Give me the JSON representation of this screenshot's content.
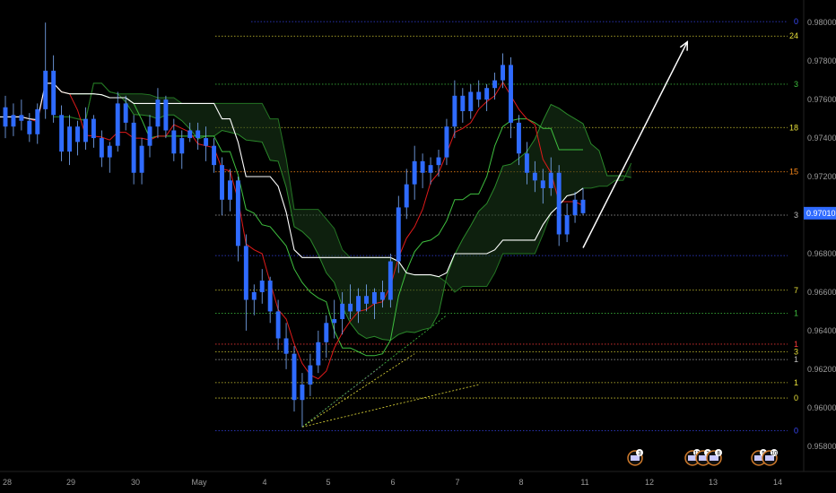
{
  "chart_data": {
    "type": "candlestick",
    "ylim": [
      0.9565,
      0.9808
    ],
    "y_ticks": [
      0.98,
      0.978,
      0.976,
      0.974,
      0.972,
      0.97,
      0.968,
      0.966,
      0.964,
      0.962,
      0.96,
      0.958
    ],
    "y_tick_labels": [
      "0.98000",
      "0.97800",
      "0.97600",
      "0.97400",
      "0.97200",
      "0.97000",
      "0.96800",
      "0.96600",
      "0.96400",
      "0.96200",
      "0.96000",
      "0.95800"
    ],
    "x_tick_labels": [
      "28",
      "29",
      "30",
      "May",
      "4",
      "5",
      "6",
      "7",
      "8",
      "11",
      "12",
      "13",
      "14"
    ],
    "current_price": 0.9701,
    "current_price_label": "0.97010",
    "candles": [
      [
        0.9756,
        0.9762,
        0.974,
        0.9746
      ],
      [
        0.9746,
        0.9758,
        0.9741,
        0.9752
      ],
      [
        0.9752,
        0.976,
        0.9744,
        0.9749
      ],
      [
        0.9749,
        0.9753,
        0.9738,
        0.9742
      ],
      [
        0.9742,
        0.9758,
        0.9737,
        0.9755
      ],
      [
        0.9755,
        0.98,
        0.975,
        0.9775
      ],
      [
        0.9775,
        0.9783,
        0.9748,
        0.9752
      ],
      [
        0.9752,
        0.9757,
        0.9728,
        0.9733
      ],
      [
        0.9733,
        0.9752,
        0.9726,
        0.9746
      ],
      [
        0.9746,
        0.9749,
        0.9731,
        0.9738
      ],
      [
        0.9738,
        0.9756,
        0.9734,
        0.975
      ],
      [
        0.975,
        0.9752,
        0.9735,
        0.974
      ],
      [
        0.974,
        0.9744,
        0.9725,
        0.973
      ],
      [
        0.973,
        0.9738,
        0.9722,
        0.9736
      ],
      [
        0.9736,
        0.9764,
        0.9733,
        0.9758
      ],
      [
        0.9758,
        0.9762,
        0.9744,
        0.9748
      ],
      [
        0.9748,
        0.9752,
        0.9716,
        0.9722
      ],
      [
        0.9722,
        0.974,
        0.9716,
        0.9736
      ],
      [
        0.9736,
        0.9752,
        0.973,
        0.9746
      ],
      [
        0.9746,
        0.9766,
        0.974,
        0.976
      ],
      [
        0.976,
        0.9762,
        0.974,
        0.9744
      ],
      [
        0.9744,
        0.975,
        0.9728,
        0.9732
      ],
      [
        0.9732,
        0.9744,
        0.9724,
        0.974
      ],
      [
        0.974,
        0.9748,
        0.9738,
        0.9744
      ],
      [
        0.9744,
        0.9748,
        0.9734,
        0.974
      ],
      [
        0.974,
        0.9746,
        0.9728,
        0.9736
      ],
      [
        0.9736,
        0.974,
        0.9722,
        0.9726
      ],
      [
        0.9726,
        0.973,
        0.97,
        0.9708
      ],
      [
        0.9708,
        0.9724,
        0.9702,
        0.9718
      ],
      [
        0.9718,
        0.972,
        0.9676,
        0.9684
      ],
      [
        0.9684,
        0.969,
        0.964,
        0.9656
      ],
      [
        0.9656,
        0.9664,
        0.9648,
        0.966
      ],
      [
        0.966,
        0.9672,
        0.9654,
        0.9666
      ],
      [
        0.9666,
        0.9668,
        0.9644,
        0.965
      ],
      [
        0.965,
        0.9656,
        0.963,
        0.9636
      ],
      [
        0.9636,
        0.9644,
        0.962,
        0.9628
      ],
      [
        0.9628,
        0.9632,
        0.9598,
        0.9604
      ],
      [
        0.9604,
        0.9618,
        0.959,
        0.9612
      ],
      [
        0.9612,
        0.9628,
        0.9606,
        0.9622
      ],
      [
        0.9622,
        0.964,
        0.9618,
        0.9634
      ],
      [
        0.9634,
        0.9648,
        0.9626,
        0.9644
      ],
      [
        0.9644,
        0.9656,
        0.9636,
        0.9646
      ],
      [
        0.9646,
        0.966,
        0.9638,
        0.9654
      ],
      [
        0.9654,
        0.9664,
        0.9646,
        0.965
      ],
      [
        0.965,
        0.9662,
        0.9644,
        0.9658
      ],
      [
        0.9658,
        0.9664,
        0.965,
        0.9654
      ],
      [
        0.9654,
        0.9662,
        0.9646,
        0.966
      ],
      [
        0.966,
        0.9666,
        0.9652,
        0.9656
      ],
      [
        0.9656,
        0.968,
        0.9652,
        0.9676
      ],
      [
        0.9676,
        0.971,
        0.967,
        0.9704
      ],
      [
        0.9704,
        0.9724,
        0.9698,
        0.9716
      ],
      [
        0.9716,
        0.9736,
        0.9708,
        0.9728
      ],
      [
        0.9728,
        0.9732,
        0.9714,
        0.9722
      ],
      [
        0.9722,
        0.973,
        0.9716,
        0.9726
      ],
      [
        0.9726,
        0.9734,
        0.972,
        0.973
      ],
      [
        0.973,
        0.975,
        0.9726,
        0.9746
      ],
      [
        0.9746,
        0.977,
        0.974,
        0.9762
      ],
      [
        0.9762,
        0.9766,
        0.9748,
        0.9754
      ],
      [
        0.9754,
        0.9768,
        0.975,
        0.9764
      ],
      [
        0.9764,
        0.977,
        0.9756,
        0.976
      ],
      [
        0.976,
        0.9768,
        0.9754,
        0.9766
      ],
      [
        0.9766,
        0.9774,
        0.976,
        0.977
      ],
      [
        0.977,
        0.9784,
        0.9766,
        0.9778
      ],
      [
        0.9778,
        0.9782,
        0.974,
        0.9748
      ],
      [
        0.9748,
        0.9752,
        0.9726,
        0.9732
      ],
      [
        0.9732,
        0.9738,
        0.9716,
        0.9722
      ],
      [
        0.9722,
        0.9728,
        0.9712,
        0.9718
      ],
      [
        0.9718,
        0.9724,
        0.9706,
        0.9714
      ],
      [
        0.9714,
        0.973,
        0.971,
        0.9722
      ],
      [
        0.9722,
        0.9726,
        0.9684,
        0.969
      ],
      [
        0.969,
        0.9706,
        0.9686,
        0.97
      ],
      [
        0.97,
        0.9712,
        0.9696,
        0.9708
      ],
      [
        0.9708,
        0.9714,
        0.97,
        0.9701
      ]
    ],
    "fib_levels": [
      {
        "label": "0",
        "price": 0.98005,
        "color": "#3b4bff"
      },
      {
        "label": "24",
        "price": 0.9793,
        "color": "#e8e03a"
      },
      {
        "label": "3",
        "price": 0.9768,
        "color": "#3fbf3f"
      },
      {
        "label": "18",
        "price": 0.97455,
        "color": "#e8e03a"
      },
      {
        "label": "15",
        "price": 0.97225,
        "color": "#ff8c1a"
      },
      {
        "label": "3",
        "price": 0.97,
        "color": "#bdbdbd"
      },
      {
        "label": "",
        "price": 0.9679,
        "color": "#3b4bff"
      },
      {
        "label": "7",
        "price": 0.9661,
        "color": "#e8e03a"
      },
      {
        "label": "1",
        "price": 0.9649,
        "color": "#3fbf3f"
      },
      {
        "label": "1",
        "price": 0.9633,
        "color": "#ff3b3b"
      },
      {
        "label": "3",
        "price": 0.9629,
        "color": "#e8e03a"
      },
      {
        "label": "1",
        "price": 0.9625,
        "color": "#bdbdbd"
      },
      {
        "label": "1",
        "price": 0.9613,
        "color": "#e8e03a"
      },
      {
        "label": "0",
        "price": 0.9605,
        "color": "#e8e03a"
      },
      {
        "label": "0",
        "price": 0.9588,
        "color": "#3b4bff"
      }
    ],
    "projection": {
      "from": [
        72,
        0.9683
      ],
      "to": [
        85,
        0.979
      ]
    },
    "events": [
      {
        "x_day": "11",
        "label": "3"
      },
      {
        "x_day": "12",
        "label": "11 2 8"
      },
      {
        "x_day": "13",
        "label": "5 10"
      }
    ],
    "colors": {
      "candle": "#2f6bff",
      "tenkan": "#e01a1a",
      "kijun": "#3fbf3f",
      "senkou": "#2b8a2b",
      "white_line": "#ffffff",
      "cloud": "#1a3a1a",
      "axis_text": "#9a9a9a",
      "price_badge": "#2f6bff"
    }
  }
}
